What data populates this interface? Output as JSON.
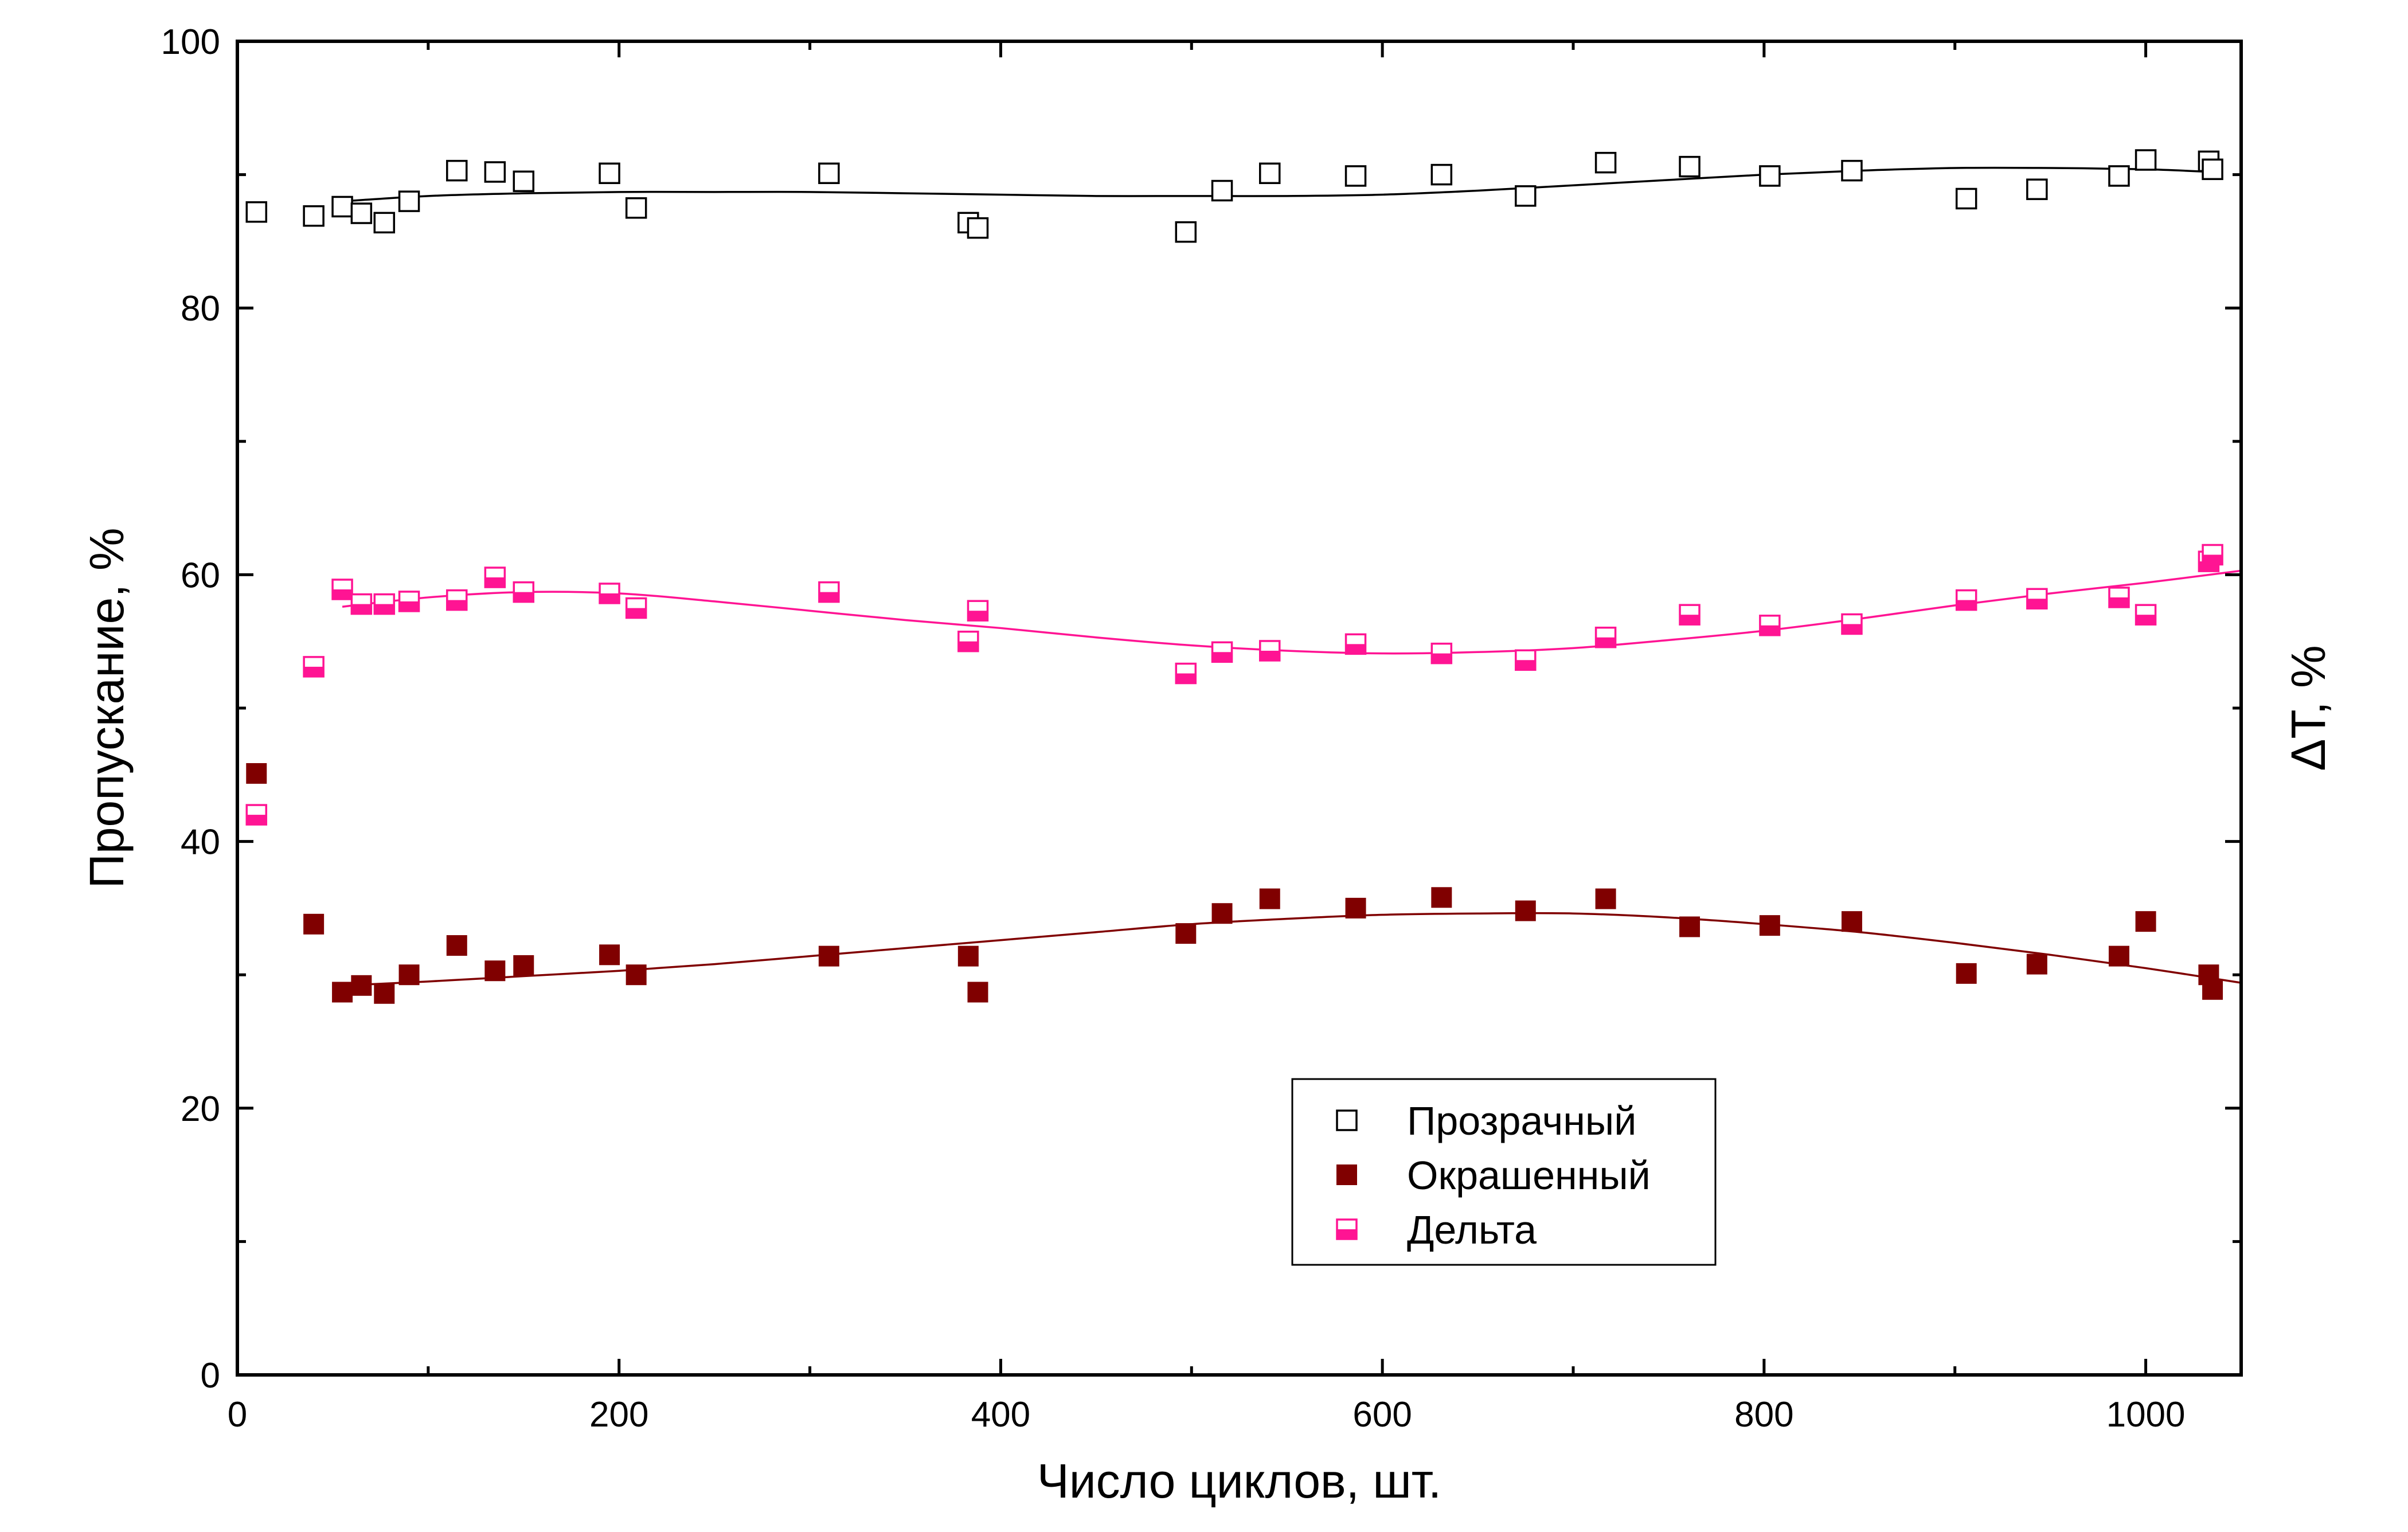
{
  "chart_data": {
    "type": "scatter",
    "xlabel": "Число циклов, шт.",
    "ylabel": "Пропускание, %",
    "y2label": "ΔT, %",
    "xlim": [
      0,
      1050
    ],
    "ylim": [
      0,
      100
    ],
    "xticks": [
      "0",
      "200",
      "400",
      "600",
      "800",
      "1000"
    ],
    "yticks": [
      "0",
      "20",
      "40",
      "60",
      "80",
      "100"
    ],
    "grid": false,
    "legend_position": "bottom-center",
    "colors": {
      "axis": "#000000",
      "transparent": "#000000",
      "colored": "#800000",
      "delta": "#ff1493"
    },
    "series": [
      {
        "name": "Прозрачный",
        "marker": "open-square",
        "x": [
          10,
          40,
          55,
          65,
          77,
          90,
          115,
          135,
          150,
          195,
          209,
          310,
          383,
          388,
          497,
          516,
          541,
          586,
          631,
          675,
          717,
          761,
          803,
          846,
          906,
          943,
          986,
          1000,
          1033,
          1035
        ],
        "y": [
          87.2,
          86.9,
          87.6,
          87.1,
          86.4,
          88.0,
          90.3,
          90.2,
          89.5,
          90.1,
          87.5,
          90.1,
          86.4,
          86.0,
          85.7,
          88.8,
          90.1,
          89.9,
          90.0,
          88.4,
          90.9,
          90.6,
          89.9,
          90.3,
          88.2,
          88.9,
          89.9,
          91.1,
          91.0,
          90.4
        ]
      },
      {
        "name": "Окрашенный",
        "marker": "filled-square",
        "x": [
          10,
          40,
          55,
          65,
          77,
          90,
          115,
          135,
          150,
          195,
          209,
          310,
          383,
          388,
          497,
          516,
          541,
          586,
          631,
          675,
          717,
          761,
          803,
          846,
          906,
          943,
          986,
          1000,
          1033,
          1035
        ],
        "y": [
          45.1,
          33.8,
          28.7,
          29.2,
          28.6,
          30.0,
          32.2,
          30.3,
          30.7,
          31.5,
          30.0,
          31.4,
          31.4,
          28.7,
          33.1,
          34.6,
          35.7,
          35.0,
          35.8,
          34.8,
          35.7,
          33.6,
          33.7,
          34.0,
          30.1,
          30.8,
          31.4,
          34.0,
          30.0,
          28.9
        ]
      },
      {
        "name": "Дельта",
        "marker": "half-filled-square",
        "x": [
          10,
          40,
          55,
          65,
          77,
          90,
          115,
          135,
          150,
          195,
          209,
          310,
          383,
          388,
          497,
          516,
          541,
          586,
          631,
          675,
          717,
          761,
          803,
          846,
          906,
          943,
          986,
          1000,
          1033,
          1035
        ],
        "y": [
          42.0,
          53.1,
          58.9,
          57.8,
          57.8,
          58.0,
          58.1,
          59.8,
          58.7,
          58.6,
          57.5,
          58.7,
          55.0,
          57.3,
          52.6,
          54.2,
          54.3,
          54.8,
          54.1,
          53.6,
          55.3,
          57.0,
          56.2,
          56.3,
          58.1,
          58.2,
          58.3,
          57.0,
          61.0,
          61.5
        ]
      }
    ],
    "fit_curves": [
      {
        "series": "Прозрачный",
        "x": [
          55,
          100,
          150,
          200,
          250,
          300,
          350,
          400,
          450,
          500,
          550,
          600,
          650,
          700,
          750,
          800,
          850,
          900,
          950,
          1000,
          1035
        ],
        "y": [
          88.0,
          88.4,
          88.6,
          88.7,
          88.7,
          88.7,
          88.6,
          88.5,
          88.4,
          88.4,
          88.4,
          88.5,
          88.8,
          89.2,
          89.6,
          90.0,
          90.3,
          90.5,
          90.5,
          90.4,
          90.2
        ]
      },
      {
        "series": "Окрашенный",
        "x": [
          55,
          100,
          150,
          200,
          250,
          300,
          350,
          400,
          450,
          500,
          550,
          600,
          650,
          700,
          750,
          800,
          850,
          900,
          950,
          1000,
          1050
        ],
        "y": [
          29.2,
          29.5,
          29.9,
          30.3,
          30.8,
          31.4,
          32.0,
          32.6,
          33.2,
          33.8,
          34.2,
          34.5,
          34.6,
          34.6,
          34.3,
          33.8,
          33.2,
          32.4,
          31.5,
          30.5,
          29.4
        ]
      },
      {
        "series": "Дельта",
        "x": [
          55,
          100,
          150,
          200,
          250,
          300,
          350,
          400,
          450,
          500,
          550,
          600,
          650,
          700,
          750,
          800,
          850,
          900,
          950,
          1000,
          1050
        ],
        "y": [
          57.6,
          58.3,
          58.7,
          58.6,
          58.0,
          57.3,
          56.6,
          56.0,
          55.3,
          54.7,
          54.3,
          54.1,
          54.2,
          54.5,
          55.1,
          55.8,
          56.7,
          57.7,
          58.6,
          59.4,
          60.3
        ]
      }
    ]
  }
}
